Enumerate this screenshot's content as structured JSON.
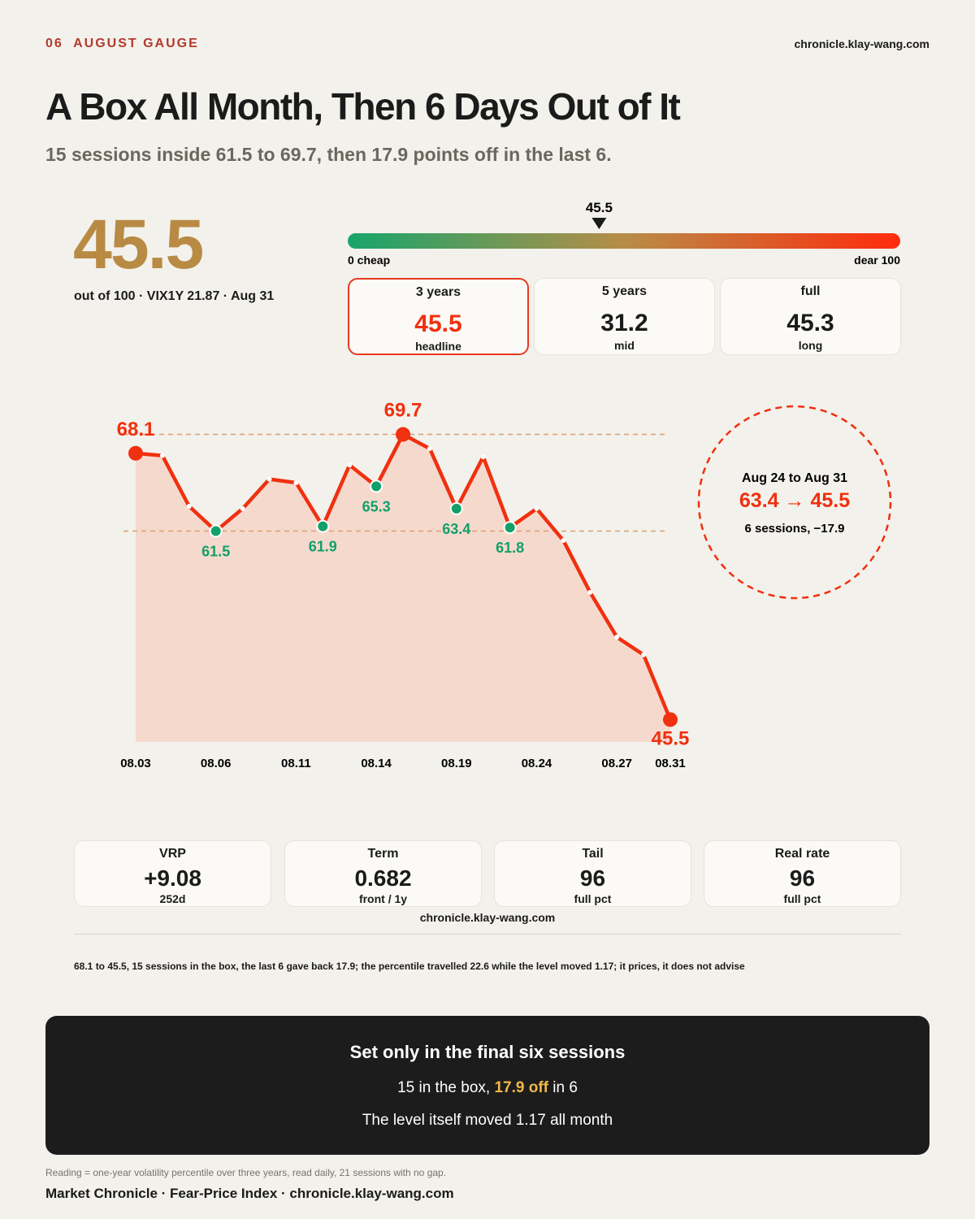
{
  "header": {
    "number": "06",
    "kicker": "AUGUST GAUGE",
    "site": "chronicle.klay-wang.com"
  },
  "title": "A Box All Month, Then 6 Days Out of It",
  "subtitle": "15 sessions inside 61.5 to 69.7, then 17.9 points off in the last 6.",
  "hero": {
    "value": 45.5,
    "caption": "out of 100 · VIX1Y 21.87 · Aug 31"
  },
  "tabs": [
    {
      "label": "3 years",
      "value": 45.5,
      "note": "headline"
    },
    {
      "label": "5 years",
      "value": 31.2,
      "note": "mid"
    },
    {
      "label": "full",
      "value": 45.3,
      "note": "long"
    }
  ],
  "chart_data": [
    {
      "type": "gauge",
      "value": 45.5,
      "xlim": [
        0,
        100
      ],
      "xticks": [
        {
          "value": 0,
          "label": "0 cheap"
        },
        {
          "value": 100,
          "label": "dear 100"
        }
      ],
      "colors": [
        "#17a56b",
        "#b78d47",
        "#ff2b0c"
      ]
    },
    {
      "type": "line",
      "categories": [
        "08.03",
        null,
        null,
        "08.06",
        null,
        null,
        "08.11",
        null,
        null,
        "08.14",
        null,
        null,
        "08.19",
        null,
        null,
        "08.24",
        null,
        null,
        "08.27",
        null,
        "08.31"
      ],
      "values": [
        68.1,
        67.9,
        63.6,
        61.5,
        63.4,
        65.9,
        65.6,
        61.9,
        67.1,
        65.3,
        69.7,
        68.5,
        63.4,
        67.8,
        61.8,
        63.4,
        60.7,
        56.3,
        52.5,
        51.0,
        45.5
      ],
      "color": "#f0300f",
      "fill": "#f6d9cd",
      "highlight_colors": [
        "#f0300f",
        "#12a06a"
      ],
      "ylim": [
        43.6,
        73
      ],
      "annotation": {
        "title": "Aug 24 to Aug 31",
        "value": "63.4 → 45.5",
        "note": "6 sessions, −17.9"
      }
    }
  ],
  "metrics": [
    {
      "label": "VRP",
      "value": "+9.08",
      "note": "252d"
    },
    {
      "label": "Term",
      "value": 0.682,
      "note": "front / 1y"
    },
    {
      "label": "Tail",
      "value": 96,
      "note": "full pct"
    },
    {
      "label": "Real rate",
      "value": 96,
      "note": "full pct"
    }
  ],
  "metrics_site": "chronicle.klay-wang.com",
  "note": "68.1 to 45.5, 15 sessions in the box, the last 6 gave back 17.9; the percentile travelled 22.6 while the level moved 1.17; it prices, it does not advise",
  "panel": {
    "title": "Set only in the final six sessions",
    "line1": [
      "15 in the box, ",
      "17.9 off",
      " in 6"
    ],
    "line2": "The level itself moved 1.17 all month"
  },
  "footer": {
    "method": "Reading = one-year volatility percentile over three years, read daily, 21 sessions with no gap.",
    "credit": "Market Chronicle · Fear-Price Index · chronicle.klay-wang.com"
  }
}
